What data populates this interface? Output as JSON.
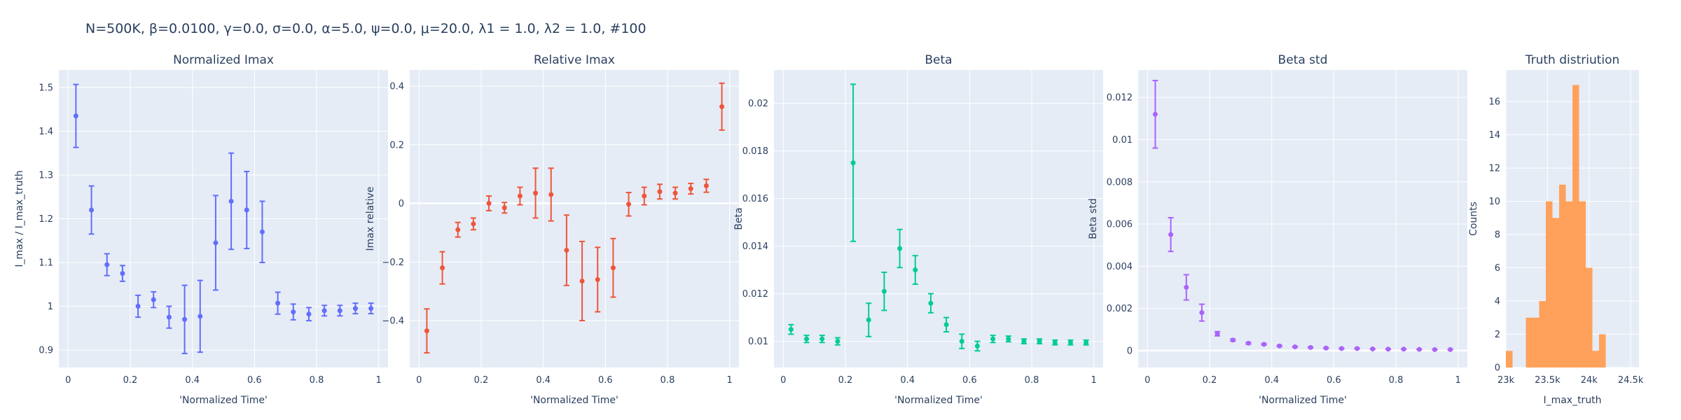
{
  "figure": {
    "title": "N=500K, β=0.0100, γ=0.0, σ=0.0,  α=5.0, ψ=0.0, μ=20.0, λ1 = 1.0, λ2 = 1.0, #100"
  },
  "colors": {
    "plot_bg": "#e5ecf6",
    "grid": "#ffffff",
    "text": "#2a3f5f",
    "series_1": "#636efa",
    "series_2": "#ef553b",
    "series_3": "#00cc96",
    "series_4": "#ab63fa",
    "series_5": "#ffa15a"
  },
  "chart_data": [
    {
      "type": "scatter",
      "title": "Normalized Imax",
      "xlabel": "'Normalized Time'",
      "ylabel": "I_max / I_max_truth",
      "xlim": [
        -0.03,
        1.03
      ],
      "ylim": [
        0.86,
        1.54
      ],
      "xticks": [
        0,
        0.2,
        0.4,
        0.6,
        0.8,
        1
      ],
      "xtick_labels": [
        "0",
        "0.2",
        "0.4",
        "0.6",
        "0.8",
        "1"
      ],
      "yticks": [
        0.9,
        1,
        1.1,
        1.2,
        1.3,
        1.4,
        1.5
      ],
      "ytick_labels": [
        "0.9",
        "1",
        "1.1",
        "1.2",
        "1.3",
        "1.4",
        "1.5"
      ],
      "zero_line": null,
      "color": "#636efa",
      "x": [
        0.025,
        0.075,
        0.125,
        0.175,
        0.225,
        0.275,
        0.325,
        0.375,
        0.425,
        0.475,
        0.525,
        0.575,
        0.625,
        0.675,
        0.725,
        0.775,
        0.825,
        0.875,
        0.925,
        0.975
      ],
      "y": [
        1.435,
        1.22,
        1.095,
        1.075,
        1.0,
        1.015,
        0.975,
        0.97,
        0.977,
        1.145,
        1.24,
        1.22,
        1.17,
        1.007,
        0.987,
        0.982,
        0.99,
        0.99,
        0.995,
        0.995
      ],
      "err": [
        0.072,
        0.055,
        0.025,
        0.018,
        0.025,
        0.018,
        0.025,
        0.078,
        0.082,
        0.108,
        0.11,
        0.088,
        0.07,
        0.025,
        0.018,
        0.015,
        0.012,
        0.012,
        0.012,
        0.012
      ]
    },
    {
      "type": "scatter",
      "title": "Relative Imax",
      "xlabel": "'Normalized Time'",
      "ylabel": "Imax relative",
      "xlim": [
        -0.03,
        1.03
      ],
      "ylim": [
        -0.56,
        0.455
      ],
      "xticks": [
        0,
        0.2,
        0.4,
        0.6,
        0.8,
        1
      ],
      "xtick_labels": [
        "0",
        "0.2",
        "0.4",
        "0.6",
        "0.8",
        "1"
      ],
      "yticks": [
        -0.4,
        -0.2,
        0,
        0.2,
        0.4
      ],
      "ytick_labels": [
        "−0.4",
        "−0.2",
        "0",
        "0.2",
        "0.4"
      ],
      "zero_line": 0,
      "color": "#ef553b",
      "x": [
        0.025,
        0.075,
        0.125,
        0.175,
        0.225,
        0.275,
        0.325,
        0.375,
        0.425,
        0.475,
        0.525,
        0.575,
        0.625,
        0.675,
        0.725,
        0.775,
        0.825,
        0.875,
        0.925,
        0.975
      ],
      "y": [
        -0.435,
        -0.22,
        -0.09,
        -0.07,
        0.0,
        -0.015,
        0.025,
        0.035,
        0.03,
        -0.16,
        -0.265,
        -0.26,
        -0.22,
        -0.003,
        0.025,
        0.04,
        0.035,
        0.05,
        0.06,
        0.33
      ],
      "err": [
        0.075,
        0.055,
        0.025,
        0.02,
        0.025,
        0.018,
        0.03,
        0.085,
        0.09,
        0.12,
        0.135,
        0.11,
        0.1,
        0.04,
        0.03,
        0.025,
        0.02,
        0.018,
        0.022,
        0.08
      ]
    },
    {
      "type": "scatter",
      "title": "Beta",
      "xlabel": "'Normalized Time'",
      "ylabel": "Beta",
      "xlim": [
        -0.03,
        1.03
      ],
      "ylim": [
        0.0089,
        0.0214
      ],
      "xticks": [
        0,
        0.2,
        0.4,
        0.6,
        0.8,
        1
      ],
      "xtick_labels": [
        "0",
        "0.2",
        "0.4",
        "0.6",
        "0.8",
        "1"
      ],
      "yticks": [
        0.01,
        0.012,
        0.014,
        0.016,
        0.018,
        0.02
      ],
      "ytick_labels": [
        "0.01",
        "0.012",
        "0.014",
        "0.016",
        "0.018",
        "0.02"
      ],
      "zero_line": null,
      "color": "#00cc96",
      "x": [
        0.025,
        0.075,
        0.125,
        0.175,
        0.225,
        0.275,
        0.325,
        0.375,
        0.425,
        0.475,
        0.525,
        0.575,
        0.625,
        0.675,
        0.725,
        0.775,
        0.825,
        0.875,
        0.925,
        0.975
      ],
      "y": [
        0.0105,
        0.0101,
        0.0101,
        0.01,
        0.0175,
        0.0109,
        0.0121,
        0.0139,
        0.013,
        0.0116,
        0.0107,
        0.01,
        0.0098,
        0.0101,
        0.0101,
        0.01,
        0.01,
        0.00995,
        0.00995,
        0.00995
      ],
      "err": [
        0.0002,
        0.00015,
        0.00015,
        0.00015,
        0.0033,
        0.0007,
        0.0008,
        0.0008,
        0.0006,
        0.0004,
        0.0003,
        0.0003,
        0.0002,
        0.00015,
        0.00012,
        0.0001,
        0.0001,
        0.0001,
        0.0001,
        0.0001
      ]
    },
    {
      "type": "scatter",
      "title": "Beta std",
      "xlabel": "'Normalized Time'",
      "ylabel": "Beta std",
      "xlim": [
        -0.03,
        1.03
      ],
      "ylim": [
        -0.0008,
        0.0133
      ],
      "xticks": [
        0,
        0.2,
        0.4,
        0.6,
        0.8,
        1
      ],
      "xtick_labels": [
        "0",
        "0.2",
        "0.4",
        "0.6",
        "0.8",
        "1"
      ],
      "yticks": [
        0,
        0.002,
        0.004,
        0.006,
        0.008,
        0.01,
        0.012
      ],
      "ytick_labels": [
        "0",
        "0.002",
        "0.004",
        "0.006",
        "0.008",
        "0.01",
        "0.012"
      ],
      "zero_line": 0,
      "color": "#ab63fa",
      "x": [
        0.025,
        0.075,
        0.125,
        0.175,
        0.225,
        0.275,
        0.325,
        0.375,
        0.425,
        0.475,
        0.525,
        0.575,
        0.625,
        0.675,
        0.725,
        0.775,
        0.825,
        0.875,
        0.925,
        0.975
      ],
      "y": [
        0.0112,
        0.0055,
        0.003,
        0.0018,
        0.0008,
        0.0005,
        0.00035,
        0.0003,
        0.00022,
        0.00018,
        0.00015,
        0.00012,
        0.0001,
        0.0001,
        8e-05,
        7e-05,
        7e-05,
        6e-05,
        5e-05,
        5e-05
      ],
      "err": [
        0.0016,
        0.0008,
        0.0006,
        0.0004,
        0.0001,
        5e-05,
        4e-05,
        3e-05,
        3e-05,
        2e-05,
        2e-05,
        2e-05,
        2e-05,
        2e-05,
        1e-05,
        1e-05,
        1e-05,
        1e-05,
        1e-05,
        1e-05
      ]
    },
    {
      "type": "bar",
      "title": "Truth distriution",
      "xlabel": "I_max_truth",
      "ylabel": "Counts",
      "xlim": [
        23000,
        24600
      ],
      "ylim": [
        0,
        17.9
      ],
      "xticks": [
        23000,
        23500,
        24000,
        24500
      ],
      "xtick_labels": [
        "23k",
        "23.5k",
        "24k",
        "24.5k"
      ],
      "yticks": [
        0,
        2,
        4,
        6,
        8,
        10,
        12,
        14,
        16
      ],
      "ytick_labels": [
        "0",
        "2",
        "4",
        "6",
        "8",
        "10",
        "12",
        "14",
        "16"
      ],
      "zero_line": null,
      "color": "#ffa15a",
      "bin_start": 23000,
      "bin_width": 80,
      "counts": [
        1,
        0,
        0,
        3,
        3,
        4,
        10,
        9,
        11,
        10,
        17,
        10,
        6,
        1,
        2
      ]
    }
  ]
}
